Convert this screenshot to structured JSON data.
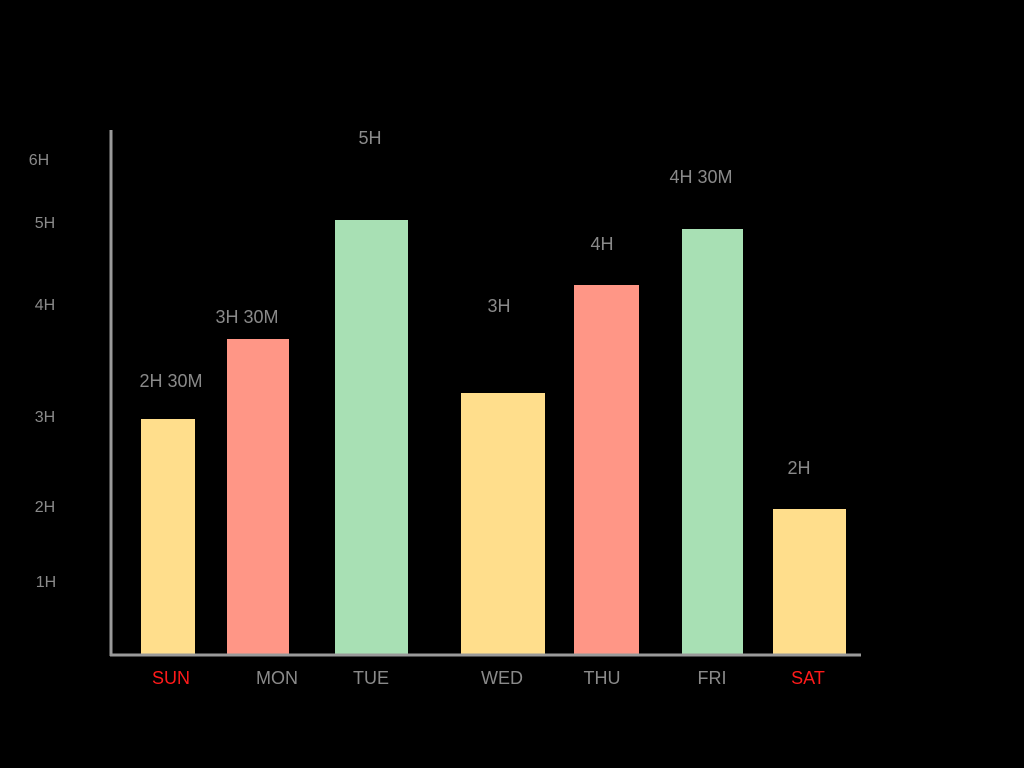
{
  "colors": {
    "background": "#000000",
    "axis": "#9a9a9a",
    "label_text": "#8a8a8a",
    "weekend_label": "#ff1a1a",
    "bar_yellow": "#ffde8c",
    "bar_red": "#ff9686",
    "bar_green": "#a8e0b4"
  },
  "chart_data": {
    "type": "bar",
    "categories": [
      "SUN",
      "MON",
      "TUE",
      "WED",
      "THU",
      "FRI",
      "SAT"
    ],
    "values": [
      2.5,
      3.5,
      5,
      3,
      4,
      4.5,
      2
    ],
    "value_labels": [
      "2H 30M",
      "3H 30M",
      "5H",
      "3H",
      "4H",
      "4H 30M",
      "2H"
    ],
    "bar_colors": [
      "#ffde8c",
      "#ff9686",
      "#a8e0b4",
      "#ffde8c",
      "#ff9686",
      "#a8e0b4",
      "#ffde8c"
    ],
    "category_label_colors": [
      "#ff1a1a",
      "#8a8a8a",
      "#8a8a8a",
      "#8a8a8a",
      "#8a8a8a",
      "#8a8a8a",
      "#ff1a1a"
    ],
    "y_ticks": [
      {
        "value": 1,
        "label": "1H"
      },
      {
        "value": 2,
        "label": "2H"
      },
      {
        "value": 3,
        "label": "3H"
      },
      {
        "value": 4,
        "label": "4H"
      },
      {
        "value": 5,
        "label": "5H"
      },
      {
        "value": 6,
        "label": "6H"
      }
    ],
    "ylim": [
      0,
      6
    ],
    "title": "",
    "xlabel": "",
    "ylabel": "",
    "grid": false,
    "legend": "none"
  }
}
